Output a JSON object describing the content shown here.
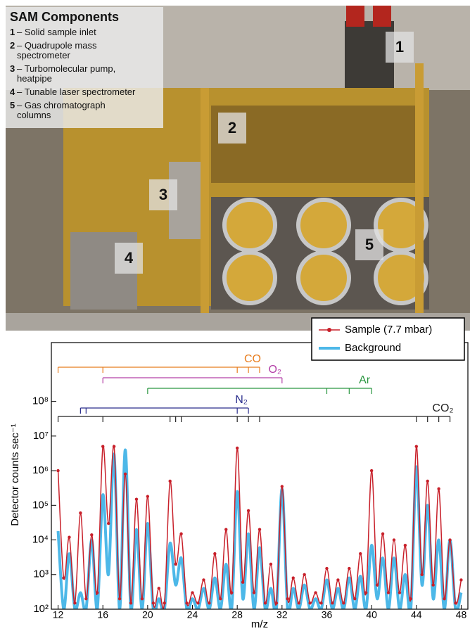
{
  "photo": {
    "title": "SAM Components",
    "items": [
      {
        "number": "1",
        "text": "– Solid sample inlet"
      },
      {
        "number": "2",
        "text": "– Quadrupole mass spectrometer"
      },
      {
        "number": "3",
        "text": "– Turbomolecular pump, heatpipe"
      },
      {
        "number": "4",
        "text": "– Tunable laser spectrometer"
      },
      {
        "number": "5",
        "text": "– Gas chromatograph columns"
      }
    ],
    "markers": [
      "1",
      "2",
      "3",
      "4",
      "5"
    ]
  },
  "chart_data": {
    "type": "line",
    "xlabel": "m/z",
    "ylabel": "Detector counts sec⁻¹",
    "log_y": true,
    "xlim": [
      11.4,
      48.6
    ],
    "xticks": [
      12,
      16,
      20,
      24,
      28,
      32,
      36,
      40,
      44,
      48
    ],
    "ylim": [
      100,
      5000000000
    ],
    "yticks": [
      {
        "value": 100,
        "label": "10²"
      },
      {
        "value": 1000,
        "label": "10³"
      },
      {
        "value": 10000,
        "label": "10⁴"
      },
      {
        "value": 100000,
        "label": "10⁵"
      },
      {
        "value": 1000000,
        "label": "10⁶"
      },
      {
        "value": 10000000,
        "label": "10⁷"
      },
      {
        "value": 100000000,
        "label": "10⁸"
      }
    ],
    "legend": "upper right",
    "x": [
      12,
      12.5,
      13,
      13.5,
      14,
      14.5,
      15,
      15.5,
      16,
      16.5,
      17,
      17.5,
      18,
      18.5,
      19,
      19.5,
      20,
      20.5,
      21,
      21.5,
      22,
      22.5,
      23,
      23.5,
      24,
      24.5,
      25,
      25.5,
      26,
      26.5,
      27,
      27.5,
      28,
      28.5,
      29,
      29.5,
      30,
      30.5,
      31,
      31.5,
      32,
      32.5,
      33,
      33.5,
      34,
      34.5,
      35,
      35.5,
      36,
      36.5,
      37,
      37.5,
      38,
      38.5,
      39,
      39.5,
      40,
      40.5,
      41,
      41.5,
      42,
      42.5,
      43,
      43.5,
      44,
      44.5,
      45,
      45.5,
      46,
      46.5,
      47,
      47.5,
      48
    ],
    "series": [
      {
        "name": "Sample (7.7 mbar)",
        "color": "#c8202a",
        "markers": true,
        "values": [
          1000000,
          800,
          12000,
          150,
          60000,
          200,
          14000,
          300,
          5000000,
          30000,
          5000000,
          200,
          800000,
          150,
          150000,
          200,
          180000,
          150,
          400,
          150,
          500000,
          2000,
          15000,
          150,
          300,
          150,
          700,
          150,
          4000,
          200,
          20000,
          300,
          4500000,
          600,
          70000,
          300,
          20000,
          150,
          2000,
          150,
          350000,
          200,
          800,
          150,
          1000,
          150,
          300,
          150,
          1500,
          150,
          700,
          150,
          1500,
          200,
          4000,
          300,
          1000000,
          500,
          15000,
          300,
          10000,
          300,
          7000,
          200,
          5000000,
          1000,
          500000,
          500,
          300000,
          200,
          10000,
          150,
          700
        ]
      },
      {
        "name": "Background",
        "color": "#4db8e8",
        "markers": false,
        "values": [
          18000,
          100,
          4000,
          100,
          300,
          100,
          10000,
          100,
          200000,
          1000,
          3000000,
          100,
          4000000,
          100,
          20000,
          100,
          30000,
          100,
          200,
          100,
          8000,
          500,
          3000,
          100,
          200,
          100,
          400,
          100,
          800,
          100,
          2000,
          100,
          250000,
          200,
          15000,
          100,
          6000,
          100,
          400,
          100,
          300000,
          100,
          400,
          100,
          500,
          100,
          200,
          100,
          700,
          100,
          400,
          100,
          800,
          100,
          900,
          100,
          7000,
          200,
          3000,
          100,
          3000,
          100,
          1000,
          100,
          1300000,
          500,
          100000,
          200,
          10000,
          100,
          10000,
          100,
          300
        ]
      }
    ],
    "annotations": [
      {
        "label": "CO",
        "color": "#e87d1e",
        "positions": [
          12,
          16,
          28,
          29,
          30
        ]
      },
      {
        "label": "O₂",
        "color": "#b440a8",
        "positions": [
          16,
          32
        ]
      },
      {
        "label": "Ar",
        "color": "#2a9640",
        "positions": [
          20,
          36,
          38,
          40
        ]
      },
      {
        "label": "N₂",
        "color": "#2a2d8c",
        "positions": [
          14,
          14.5,
          28,
          29
        ]
      },
      {
        "label": "CO₂",
        "color": "#222222",
        "positions": [
          12,
          16,
          22,
          22.5,
          23,
          28,
          29,
          30,
          44,
          45,
          46,
          47
        ]
      }
    ]
  }
}
